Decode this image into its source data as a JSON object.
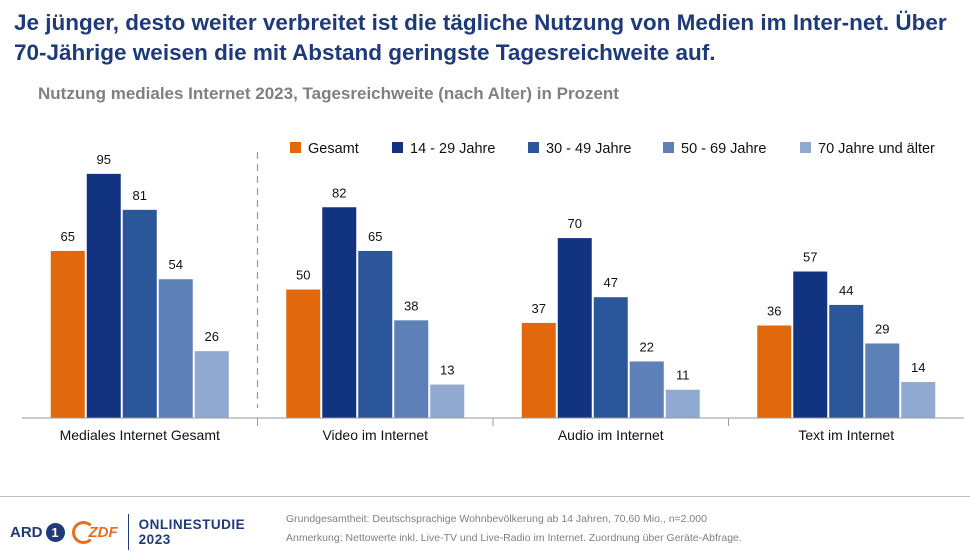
{
  "title": "Je jünger, desto weiter verbreitet ist die tägliche Nutzung von Medien im Inter-net. Über 70-Jährige weisen die mit Abstand geringste Tagesreichweite auf.",
  "subtitle": "Nutzung mediales Internet 2023, Tagesreichweite (nach Alter) in Prozent",
  "chart_data": {
    "type": "bar",
    "title": "Nutzung mediales Internet 2023, Tagesreichweite (nach Alter) in Prozent",
    "categories": [
      "Mediales Internet Gesamt",
      "Video im Internet",
      "Audio im Internet",
      "Text im Internet"
    ],
    "series": [
      {
        "name": "Gesamt",
        "color": "#e2680e",
        "values": [
          65,
          50,
          37,
          36
        ]
      },
      {
        "name": "14 - 29 Jahre",
        "color": "#123380",
        "values": [
          95,
          82,
          70,
          57
        ]
      },
      {
        "name": "30 - 49 Jahre",
        "color": "#2b5699",
        "values": [
          81,
          65,
          47,
          44
        ]
      },
      {
        "name": "50 - 69 Jahre",
        "color": "#5e80b9",
        "values": [
          54,
          38,
          22,
          29
        ]
      },
      {
        "name": "70 Jahre und älter",
        "color": "#8fa9d1",
        "values": [
          26,
          13,
          11,
          14
        ]
      }
    ],
    "ylim": [
      0,
      100
    ],
    "grid": false,
    "data_labels": true,
    "legend": "top-right"
  },
  "logos": {
    "ard": "ARD",
    "ard_mark": "1",
    "zdf": "ZDF",
    "studie_line1": "ONLINESTUDIE",
    "studie_line2": "2023"
  },
  "footnotes": {
    "line1": "Grundgesamtheit: Deutschsprachige Wohnbevölkerung ab 14 Jahren, 70,60 Mio., n=2.000",
    "line2": "Anmerkung: Nettowerte inkl. Live-TV und Live-Radio im Internet. Zuordnung über Geräte-Abfrage."
  }
}
